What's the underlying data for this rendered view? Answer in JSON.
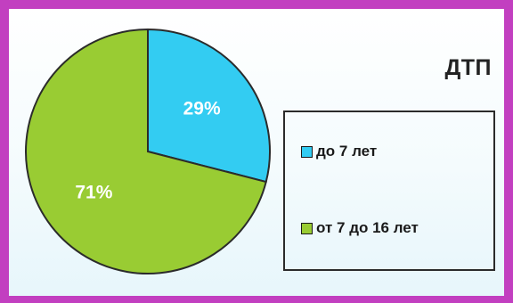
{
  "chart_data": {
    "type": "pie",
    "title": "ДТП",
    "slices": [
      {
        "label": "до 7 лет",
        "value": 29,
        "value_label": "29%",
        "color": "#33ccf2"
      },
      {
        "label": "от 7 до 16 лет",
        "value": 71,
        "value_label": "71%",
        "color": "#99cc33"
      }
    ],
    "start_angle_deg": 0,
    "direction": "clockwise",
    "legend_position": "right"
  },
  "colors": {
    "frame": "#c23fc0",
    "outline": "#2b2b2b",
    "label_text": "#ffffff"
  }
}
